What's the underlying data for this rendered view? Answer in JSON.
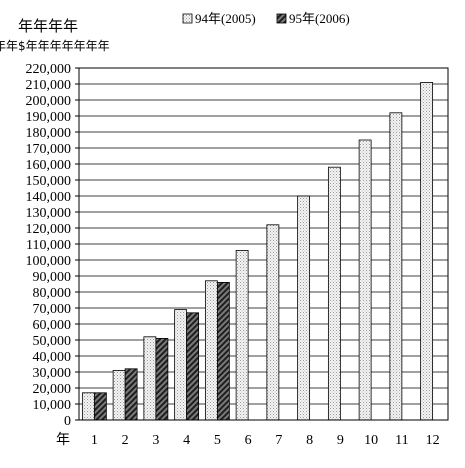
{
  "chart_data": {
    "type": "bar",
    "title": "年年年年",
    "subtitle": "年年$年年年年年年年",
    "xlabel": "年",
    "ylabel": "",
    "categories": [
      "1",
      "2",
      "3",
      "4",
      "5",
      "6",
      "7",
      "8",
      "9",
      "10",
      "11",
      "12"
    ],
    "series": [
      {
        "name": "94年(2005)",
        "values": [
          17000,
          31000,
          52000,
          69000,
          87000,
          106000,
          122000,
          140000,
          158000,
          175000,
          192000,
          211000
        ],
        "color": "#eeeeee",
        "pattern": "dotted"
      },
      {
        "name": "95年(2006)",
        "values": [
          17000,
          32000,
          51000,
          67000,
          86000,
          null,
          null,
          null,
          null,
          null,
          null,
          null
        ],
        "color": "#444444",
        "pattern": "diagonal-hatch"
      }
    ],
    "ylim": [
      0,
      220000
    ],
    "yticks": [
      0,
      10000,
      20000,
      30000,
      40000,
      50000,
      60000,
      70000,
      80000,
      90000,
      100000,
      110000,
      120000,
      130000,
      140000,
      150000,
      160000,
      170000,
      180000,
      190000,
      200000,
      210000,
      220000
    ],
    "ytick_labels": [
      "0",
      "10,000",
      "20,000",
      "30,000",
      "40,000",
      "50,000",
      "60,000",
      "70,000",
      "80,000",
      "90,000",
      "100,000",
      "110,000",
      "120,000",
      "130,000",
      "140,000",
      "150,000",
      "160,000",
      "170,000",
      "180,000",
      "190,000",
      "200,000",
      "210,000",
      "220,000"
    ],
    "grid": true,
    "legend_position": "top-right"
  }
}
